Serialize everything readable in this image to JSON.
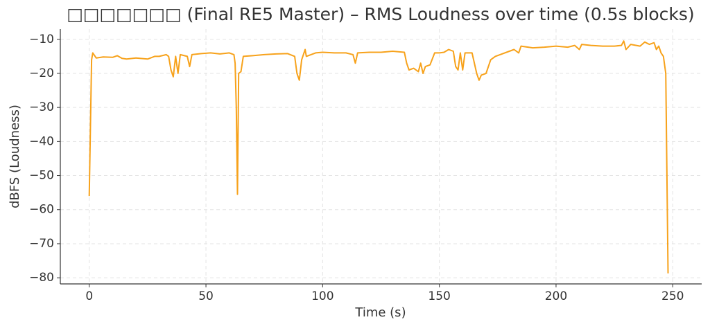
{
  "chart_data": {
    "type": "line",
    "title": "□□□□□□□ (Final RE5 Master) – RMS Loudness over time (0.5s blocks)",
    "x_label": "Time (s)",
    "y_label": "dBFS (Loudness)",
    "x": [
      0,
      1,
      1.5,
      3,
      6,
      10,
      12,
      14,
      16,
      20,
      25,
      28,
      30,
      33,
      34,
      35,
      36,
      37,
      38,
      39,
      42,
      43,
      44,
      48,
      52,
      56,
      60,
      62,
      62.5,
      63,
      63.5,
      64,
      65,
      66,
      70,
      75,
      80,
      85,
      88,
      89,
      90,
      91,
      92,
      92.5,
      93,
      97,
      100,
      105,
      110,
      113,
      114,
      115,
      120,
      125,
      130,
      135,
      136,
      137,
      139,
      141,
      142,
      143,
      144,
      146,
      148,
      150,
      152,
      154,
      156,
      157,
      158,
      159,
      160,
      161,
      163,
      164,
      166,
      167,
      168,
      170,
      172,
      174,
      176,
      180,
      182,
      184,
      185,
      190,
      195,
      200,
      205,
      208,
      210,
      211,
      215,
      220,
      225,
      228,
      229,
      230,
      232,
      236,
      238,
      240,
      242,
      243,
      244,
      245,
      246,
      247,
      248
    ],
    "series": [
      {
        "name": "RMS",
        "color": "#f7a21b",
        "values": [
          -56,
          -16,
          -14,
          -15.5,
          -15.2,
          -15.3,
          -14.8,
          -15.6,
          -15.8,
          -15.5,
          -15.8,
          -15,
          -15,
          -14.5,
          -15,
          -19,
          -21,
          -15,
          -20,
          -14.5,
          -15,
          -18,
          -14.5,
          -14.2,
          -14,
          -14.3,
          -14,
          -14.5,
          -17,
          -30,
          -55.5,
          -20,
          -19.5,
          -15,
          -14.8,
          -14.5,
          -14.3,
          -14.2,
          -15,
          -20,
          -22,
          -16,
          -14,
          -13,
          -15,
          -14,
          -13.8,
          -14,
          -14,
          -14.5,
          -17,
          -14,
          -13.8,
          -13.8,
          -13.5,
          -13.8,
          -17,
          -19,
          -18.5,
          -19.5,
          -17,
          -20,
          -18,
          -17.5,
          -14,
          -14,
          -13.8,
          -13,
          -13.5,
          -18,
          -19,
          -14,
          -19,
          -14,
          -14,
          -14,
          -20,
          -22,
          -20.5,
          -20,
          -16,
          -15,
          -14.5,
          -13.5,
          -13,
          -14,
          -12,
          -12.5,
          -12.3,
          -12,
          -12.3,
          -11.8,
          -13,
          -11.5,
          -11.8,
          -12,
          -12,
          -11.8,
          -10.5,
          -13,
          -11.5,
          -12,
          -10.8,
          -11.5,
          -11,
          -13,
          -12,
          -14,
          -15,
          -20,
          -78.7
        ]
      }
    ],
    "xlim": [
      -12.4,
      262.4
    ],
    "ylim": [
      -81.8,
      -7
    ],
    "xticks": [
      0,
      50,
      100,
      150,
      200,
      250
    ],
    "yticks": [
      {
        "value": -10,
        "label": "−10"
      },
      {
        "value": -20,
        "label": "−20"
      },
      {
        "value": -30,
        "label": "−30"
      },
      {
        "value": -40,
        "label": "−40"
      },
      {
        "value": -50,
        "label": "−50"
      },
      {
        "value": -60,
        "label": "−60"
      },
      {
        "value": -70,
        "label": "−70"
      },
      {
        "value": -80,
        "label": "−80"
      }
    ],
    "grid": true
  }
}
